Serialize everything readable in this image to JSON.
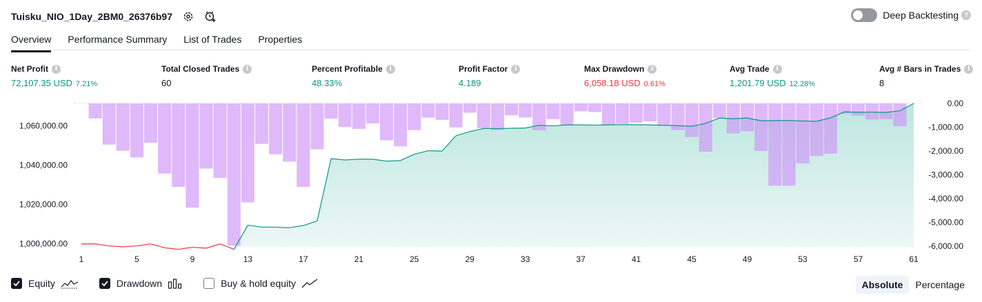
{
  "header": {
    "title": "Tuisku_NIO_1Day_2BM0_26376b97",
    "deep_backtesting_label": "Deep Backtesting"
  },
  "tabs": [
    {
      "label": "Overview",
      "active": true
    },
    {
      "label": "Performance Summary",
      "active": false
    },
    {
      "label": "List of Trades",
      "active": false
    },
    {
      "label": "Properties",
      "active": false
    }
  ],
  "metrics": [
    {
      "label": "Net Profit",
      "value": "72,107.35 USD",
      "sub": "7.21%",
      "color": "green"
    },
    {
      "label": "Total Closed Trades",
      "value": "60",
      "sub": "",
      "color": "dark"
    },
    {
      "label": "Percent Profitable",
      "value": "48.33%",
      "sub": "",
      "color": "green"
    },
    {
      "label": "Profit Factor",
      "value": "4.189",
      "sub": "",
      "color": "green"
    },
    {
      "label": "Max Drawdown",
      "value": "6,058.18 USD",
      "sub": "0.61%",
      "color": "red"
    },
    {
      "label": "Avg Trade",
      "value": "1,201.79 USD",
      "sub": "12.28%",
      "color": "green"
    },
    {
      "label": "Avg # Bars in Trades",
      "value": "8",
      "sub": "",
      "color": "dark"
    }
  ],
  "legend": {
    "equity": {
      "label": "Equity",
      "checked": true
    },
    "drawdown": {
      "label": "Drawdown",
      "checked": true
    },
    "buy_hold": {
      "label": "Buy & hold equity",
      "checked": false
    }
  },
  "modes": [
    {
      "label": "Absolute",
      "active": true
    },
    {
      "label": "Percentage",
      "active": false
    }
  ],
  "colors": {
    "equity_up": "#089981",
    "equity_down": "#f23645",
    "area_fill": "#22ab94",
    "drawdown_bar": "#ce93f8",
    "overlap_bar": "#aab4e8"
  },
  "chart_data": {
    "type": "line",
    "x_ticks": [
      "1",
      "5",
      "9",
      "13",
      "17",
      "21",
      "25",
      "29",
      "33",
      "37",
      "41",
      "45",
      "49",
      "53",
      "57",
      "61"
    ],
    "xlim": [
      1,
      61
    ],
    "left_axis": {
      "ticks": [
        "1,000,000.00",
        "1,020,000.00",
        "1,040,000.00",
        "1,060,000.00"
      ],
      "tick_values": [
        1000000,
        1020000,
        1040000,
        1060000
      ],
      "range": [
        998500,
        1071300
      ]
    },
    "right_axis": {
      "ticks": [
        "0.00",
        "-1,000.00",
        "-2,000.00",
        "-3,000.00",
        "-4,000.00",
        "-5,000.00",
        "-6,000.00"
      ],
      "tick_values": [
        0,
        -1000,
        -2000,
        -3000,
        -4000,
        -5000,
        -6000
      ],
      "range": [
        -6030,
        0
      ]
    },
    "series": [
      {
        "kind": "equity",
        "axis": "left",
        "x": [
          1,
          2,
          3,
          4,
          5,
          6,
          7,
          8,
          9,
          10,
          11,
          12,
          13,
          14,
          15,
          16,
          17,
          18,
          19,
          20,
          21,
          22,
          23,
          24,
          25,
          26,
          27,
          28,
          29,
          30,
          31,
          32,
          33,
          34,
          35,
          36,
          37,
          38,
          39,
          40,
          41,
          42,
          43,
          44,
          45,
          46,
          47,
          48,
          49,
          50,
          51,
          52,
          53,
          54,
          55,
          56,
          57,
          58,
          59,
          60,
          61
        ],
        "values": [
          1000000,
          1000000,
          999000,
          998500,
          999000,
          1000000,
          998000,
          997200,
          998300,
          997800,
          1000000,
          997200,
          1009500,
          1008500,
          1008500,
          1008200,
          1009300,
          1011700,
          1043300,
          1042600,
          1043000,
          1043000,
          1042000,
          1042300,
          1045500,
          1047300,
          1047100,
          1054900,
          1057000,
          1058600,
          1058500,
          1058700,
          1058800,
          1060200,
          1059900,
          1060400,
          1060400,
          1060300,
          1060400,
          1060500,
          1060500,
          1060400,
          1060200,
          1060000,
          1059700,
          1061200,
          1063900,
          1063500,
          1063900,
          1062500,
          1062600,
          1062600,
          1062400,
          1062200,
          1064000,
          1067000,
          1066800,
          1066900,
          1066700,
          1067600,
          1071300
        ]
      },
      {
        "kind": "drawdown",
        "axis": "right",
        "x": [
          1,
          2,
          3,
          4,
          5,
          6,
          7,
          8,
          9,
          10,
          11,
          12,
          13,
          14,
          15,
          16,
          17,
          18,
          19,
          20,
          21,
          22,
          23,
          24,
          25,
          26,
          27,
          28,
          29,
          30,
          31,
          32,
          33,
          34,
          35,
          36,
          37,
          38,
          39,
          40,
          41,
          42,
          43,
          44,
          45,
          46,
          47,
          48,
          49,
          50,
          51,
          52,
          53,
          54,
          55,
          56,
          57,
          58,
          59,
          60,
          61
        ],
        "values": [
          0,
          -630,
          -1730,
          -1990,
          -2270,
          -1650,
          -2950,
          -3510,
          -4380,
          -2740,
          -3130,
          -5980,
          -4160,
          -1700,
          -2140,
          -2450,
          -3510,
          -1930,
          -640,
          -990,
          -1070,
          -840,
          -1550,
          -1800,
          -1120,
          -600,
          -690,
          -1010,
          -390,
          -1040,
          -1120,
          -500,
          -590,
          -1130,
          -660,
          -920,
          -330,
          -360,
          -900,
          -860,
          -810,
          -760,
          -930,
          -1120,
          -1410,
          -2030,
          -630,
          -1260,
          -1170,
          -2000,
          -3460,
          -3460,
          -2520,
          -2210,
          -2110,
          -440,
          -510,
          -680,
          -660,
          -960,
          0
        ]
      }
    ]
  }
}
